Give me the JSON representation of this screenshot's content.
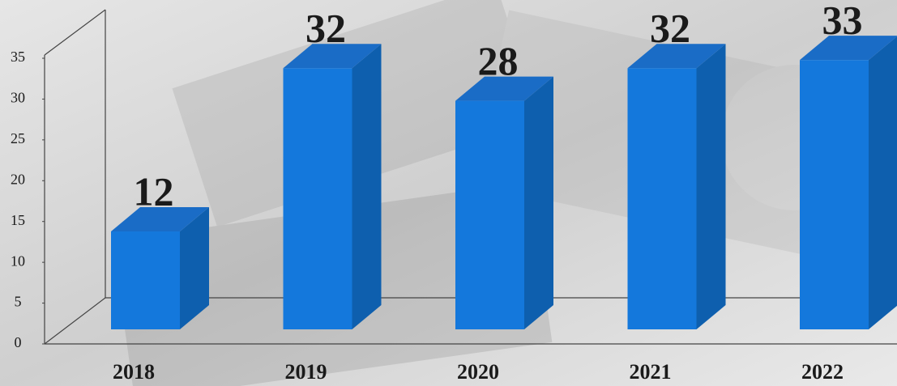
{
  "chart_data": {
    "type": "bar3d",
    "categories": [
      "2018",
      "2019",
      "2020",
      "2021",
      "2022"
    ],
    "values": [
      12,
      32,
      28,
      32,
      33
    ],
    "color": "#1478dc",
    "ylim": [
      0,
      35
    ],
    "yticks": [
      0,
      5,
      10,
      15,
      20,
      25,
      30,
      35
    ]
  }
}
